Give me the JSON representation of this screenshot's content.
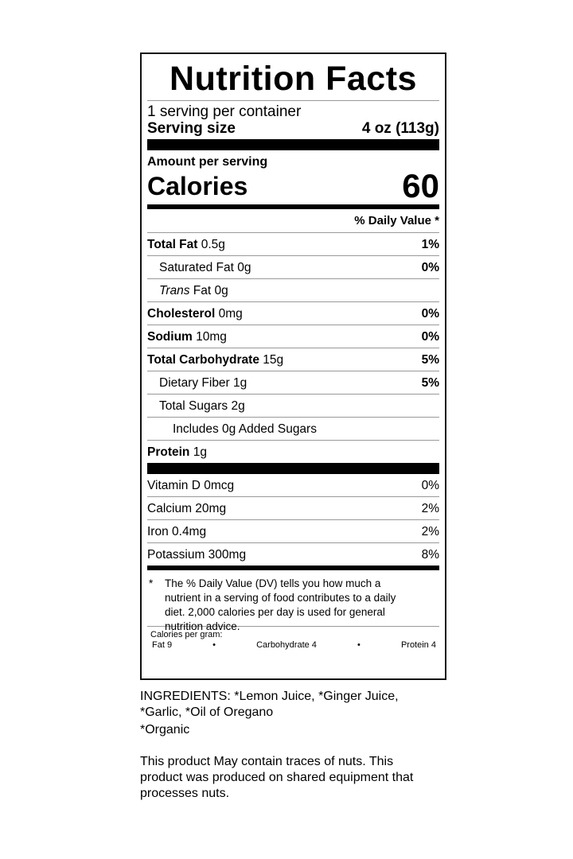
{
  "label": {
    "title": "Nutrition Facts",
    "servings_per_container": "1 serving per container",
    "serving_size_label": "Serving size",
    "serving_size_value": "4 oz (113g)",
    "amount_per_serving": "Amount per serving",
    "calories_label": "Calories",
    "calories_value": "60",
    "daily_value_header": "% Daily Value *",
    "nutrients": [
      {
        "name": "Total Fat",
        "amount": "0.5g",
        "dv": "1%",
        "bold": true,
        "indent": 0
      },
      {
        "name": "Saturated Fat",
        "amount": "0g",
        "dv": "0%",
        "bold": false,
        "indent": 1
      },
      {
        "name": "Trans",
        "name_suffix": "Fat",
        "amount": "0g",
        "dv": "",
        "bold": false,
        "indent": 1,
        "italic": true
      },
      {
        "name": "Cholesterol",
        "amount": "0mg",
        "dv": "0%",
        "bold": true,
        "indent": 0
      },
      {
        "name": "Sodium",
        "amount": "10mg",
        "dv": "0%",
        "bold": true,
        "indent": 0
      },
      {
        "name": "Total Carbohydrate",
        "amount": "15g",
        "dv": "5%",
        "bold": true,
        "indent": 0
      },
      {
        "name": "Dietary Fiber",
        "amount": "1g",
        "dv": "5%",
        "bold": false,
        "indent": 1
      },
      {
        "name": "Total Sugars",
        "amount": "2g",
        "dv": "",
        "bold": false,
        "indent": 1
      },
      {
        "name": "Includes 0g Added Sugars",
        "amount": "",
        "dv": "",
        "bold": false,
        "indent": 2
      },
      {
        "name": "Protein",
        "amount": "1g",
        "dv": "",
        "bold": true,
        "indent": 0
      }
    ],
    "vitamins": [
      {
        "name": "Vitamin D 0mcg",
        "dv": "0%"
      },
      {
        "name": "Calcium 20mg",
        "dv": "2%"
      },
      {
        "name": "Iron 0.4mg",
        "dv": "2%"
      },
      {
        "name": "Potassium 300mg",
        "dv": "8%"
      }
    ],
    "footnote_mark": "*",
    "footnote": "The % Daily Value (DV) tells you how much a nutrient in a serving of food contributes to a daily diet. 2,000 calories per day is used for general nutrition advice.",
    "calories_per_gram": {
      "label": "Calories per gram:",
      "fat": "Fat 9",
      "bullet": "•",
      "carbohydrate": "Carbohydrate 4",
      "protein": "Protein 4"
    }
  },
  "ingredients": "INGREDIENTS: *Lemon Juice, *Ginger Juice, *Garlic, *Oil of Oregano",
  "organic_note": "*Organic",
  "allergen_warning": "This product May contain traces of nuts. This product was produced on shared equipment that processes nuts."
}
